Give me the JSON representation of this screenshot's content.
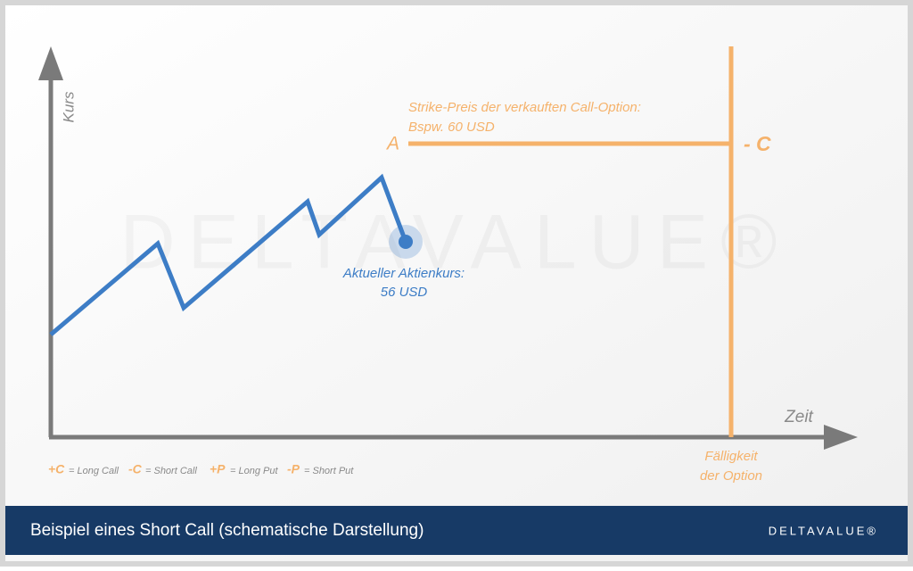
{
  "diagram": {
    "y_axis_label": "Kurs",
    "x_axis_label": "Zeit",
    "watermark": "DELTAVALUE®",
    "strike": {
      "marker": "A",
      "line1": "Strike-Preis der verkauften Call-Option:",
      "line2": "Bspw. 60 USD"
    },
    "expiry": {
      "marker": "- C",
      "line1": "Fälligkeit",
      "line2": "der Option"
    },
    "current_price": {
      "line1": "Aktueller Aktienkurs:",
      "line2": "56 USD"
    },
    "legend": [
      {
        "symbol": "+C",
        "text": "= Long Call"
      },
      {
        "symbol": "-C",
        "text": "= Short Call"
      },
      {
        "symbol": "+P",
        "text": "= Long Put"
      },
      {
        "symbol": "-P",
        "text": "= Short Put"
      }
    ]
  },
  "footer": {
    "title": "Beispiel eines Short Call (schematische Darstellung)",
    "logo": "DELTAVALUE®"
  }
}
